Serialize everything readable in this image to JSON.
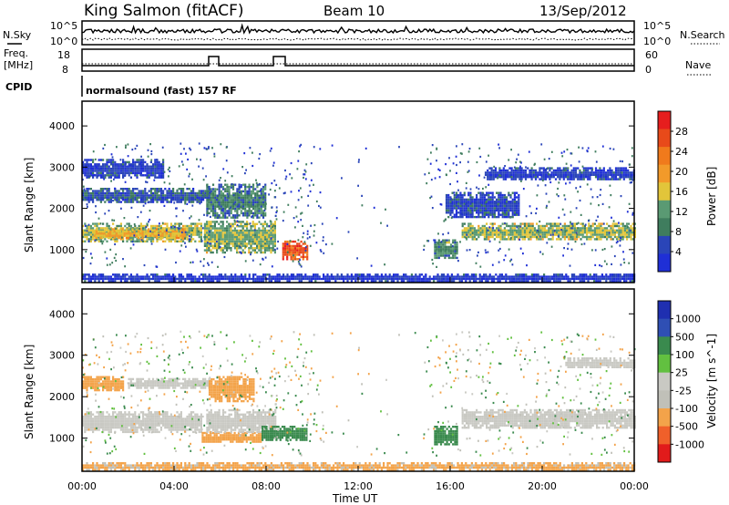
{
  "header": {
    "station": "King Salmon (fitACF)",
    "beam": "Beam 10",
    "date": "13/Sep/2012"
  },
  "strip": {
    "nsky_label": "N.Sky",
    "nsearch_label": "N.Search",
    "freq_label_1": "Freq.",
    "freq_label_2": "[MHz]",
    "nave_label": "Nave",
    "cpid_label": "CPID",
    "cpid_value": "normalsound (fast) 157 RF",
    "noise_ticks_left": [
      "10^5",
      "10^0"
    ],
    "noise_ticks_right": [
      "10^5",
      "10^0"
    ],
    "freq_ticks": [
      "18",
      "8"
    ],
    "nave_ticks": [
      "60",
      "0"
    ]
  },
  "axes": {
    "ylabel": "Slant Range [km]",
    "xlabel": "Time UT",
    "y_ticks": [
      "1000",
      "2000",
      "3000",
      "4000"
    ],
    "x_ticks": [
      "00:00",
      "04:00",
      "08:00",
      "12:00",
      "16:00",
      "20:00",
      "00:00"
    ]
  },
  "colors": {
    "power": [
      "#1f2fd6",
      "#2a45b8",
      "#3f7d5e",
      "#5a9a73",
      "#e2c53a",
      "#f29a2a",
      "#f07a1c",
      "#e84a1a",
      "#e61e1e"
    ],
    "velocity": [
      "#e11b1b",
      "#f0602a",
      "#f3a34a",
      "#c0c0b8",
      "#c9c9c3",
      "#62c040",
      "#3a8a4e",
      "#2f4fb4",
      "#1f2fb0"
    ]
  },
  "chart_data": [
    {
      "type": "heatmap",
      "title": "",
      "xlabel": "Time UT",
      "ylabel": "Slant Range [km]",
      "xlim": [
        0,
        24
      ],
      "ylim": [
        200,
        4600
      ],
      "colorbar_label": "Power [dB]",
      "colorbar_ticks": [
        "4",
        "8",
        "12",
        "16",
        "20",
        "24",
        "28"
      ],
      "colorbar_range": [
        0,
        32
      ],
      "regions": [
        {
          "t0": 0.0,
          "t1": 5.2,
          "r0": 1200,
          "r1": 1650,
          "value": 14
        },
        {
          "t0": 0.5,
          "t1": 4.5,
          "r0": 1280,
          "r1": 1520,
          "value": 18
        },
        {
          "t0": 0.0,
          "t1": 5.5,
          "r0": 2150,
          "r1": 2500,
          "value": 6
        },
        {
          "t0": 0.0,
          "t1": 3.5,
          "r0": 2750,
          "r1": 3200,
          "value": 4
        },
        {
          "t0": 5.3,
          "t1": 8.4,
          "r0": 950,
          "r1": 1700,
          "value": 13
        },
        {
          "t0": 5.4,
          "t1": 8.0,
          "r0": 1800,
          "r1": 2600,
          "value": 9
        },
        {
          "t0": 8.7,
          "t1": 9.8,
          "r0": 760,
          "r1": 1220,
          "value": 26
        },
        {
          "t0": 15.3,
          "t1": 16.3,
          "r0": 820,
          "r1": 1250,
          "value": 10
        },
        {
          "t0": 16.5,
          "t1": 24.0,
          "r0": 1250,
          "r1": 1650,
          "value": 14
        },
        {
          "t0": 15.8,
          "t1": 19.0,
          "r0": 1800,
          "r1": 2400,
          "value": 5
        },
        {
          "t0": 17.5,
          "t1": 24.0,
          "r0": 2700,
          "r1": 3000,
          "value": 4
        },
        {
          "t0": 0.0,
          "t1": 24.0,
          "r0": 250,
          "r1": 420,
          "value": 3
        }
      ]
    },
    {
      "type": "heatmap",
      "title": "",
      "xlabel": "Time UT",
      "ylabel": "Slant Range [km]",
      "xlim": [
        0,
        24
      ],
      "ylim": [
        200,
        4600
      ],
      "colorbar_label": "Velocity [m s^-1]",
      "colorbar_ticks": [
        "1000",
        "500",
        "100",
        "25",
        "-25",
        "-100",
        "-500",
        "-1000"
      ],
      "regions": [
        {
          "t0": 0.0,
          "t1": 5.2,
          "r0": 1150,
          "r1": 1650,
          "value": 0
        },
        {
          "t0": 0.0,
          "t1": 1.8,
          "r0": 2150,
          "r1": 2500,
          "value": -200
        },
        {
          "t0": 2.0,
          "t1": 5.5,
          "r0": 2200,
          "r1": 2450,
          "value": 0
        },
        {
          "t0": 5.2,
          "t1": 7.8,
          "r0": 900,
          "r1": 1150,
          "value": -300
        },
        {
          "t0": 5.4,
          "t1": 8.4,
          "r0": 1150,
          "r1": 1700,
          "value": 0
        },
        {
          "t0": 7.8,
          "t1": 9.8,
          "r0": 950,
          "r1": 1300,
          "value": 200
        },
        {
          "t0": 5.5,
          "t1": 7.5,
          "r0": 1900,
          "r1": 2500,
          "value": -150
        },
        {
          "t0": 15.3,
          "t1": 16.3,
          "r0": 850,
          "r1": 1300,
          "value": 150
        },
        {
          "t0": 16.5,
          "t1": 24.0,
          "r0": 1250,
          "r1": 1700,
          "value": 0
        },
        {
          "t0": 21.0,
          "t1": 24.0,
          "r0": 2700,
          "r1": 2950,
          "value": 0
        },
        {
          "t0": 0.0,
          "t1": 24.0,
          "r0": 250,
          "r1": 420,
          "value": -120
        }
      ]
    }
  ]
}
